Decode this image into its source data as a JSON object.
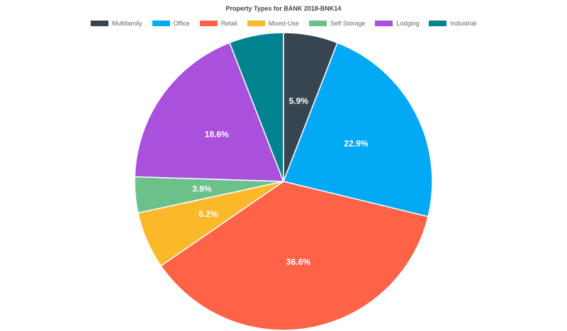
{
  "chart_data": {
    "type": "pie",
    "title": "Property Types for BANK 2018-BNK14",
    "legend_position": "top",
    "categories": [
      "Multifamily",
      "Office",
      "Retail",
      "Mixed-Use",
      "Self Storage",
      "Lodging",
      "Industrial"
    ],
    "values": [
      5.9,
      22.9,
      36.6,
      6.2,
      3.9,
      18.6,
      5.9
    ],
    "labels": [
      "5.9%",
      "22.9%",
      "36.6%",
      "6.2%",
      "3.9%",
      "18.6%",
      ""
    ],
    "colors": [
      "#36454f",
      "#03a9f4",
      "#ff6347",
      "#fbb829",
      "#6cc18a",
      "#a950dc",
      "#00838f"
    ]
  }
}
